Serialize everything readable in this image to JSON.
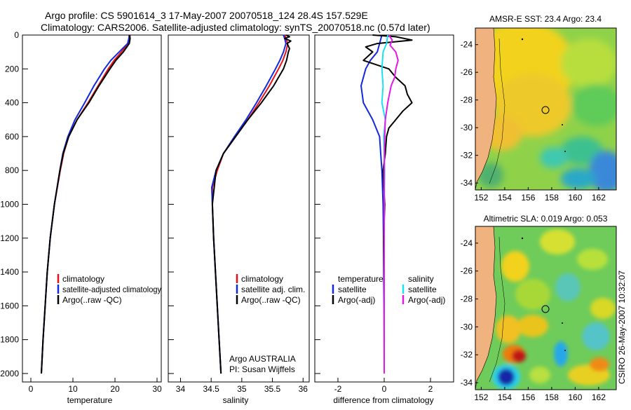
{
  "title": {
    "line1": "Argo profile: CS 5901614_3 17-May-2007 20070518_124 28.4S 157.529E",
    "line2": "Climatology: CARS2006. Satellite-adjusted climatology: synTS_20070518.nc (0.57d later)"
  },
  "colors": {
    "climatology": "#e8101a",
    "satellite": "#1228e0",
    "argo": "#000000",
    "sat_diff": "#19e3f0",
    "argo_sal_diff": "#e419e4",
    "land": "#f0b27f"
  },
  "depth_axis": {
    "ticks": [
      "0",
      "200",
      "400",
      "600",
      "800",
      "1000",
      "1200",
      "1400",
      "1600",
      "1800",
      "2000"
    ]
  },
  "chart_data": [
    {
      "type": "line",
      "xlabel": "temperature",
      "xlim": [
        -2,
        31
      ],
      "ylim": [
        2050,
        0
      ],
      "xticks": [
        "0",
        "10",
        "20",
        "30"
      ],
      "legend": [
        "climatology",
        "satellite-adjusted climatology",
        "Argo(..raw -QC)"
      ],
      "series": [
        {
          "name": "climatology",
          "depth": [
            0,
            20,
            50,
            100,
            150,
            200,
            300,
            400,
            500,
            600,
            700,
            800,
            1000,
            1200,
            1400,
            1600,
            1800,
            2000
          ],
          "values": [
            23.6,
            23.5,
            23.2,
            21.5,
            19.8,
            18.4,
            16.0,
            13.6,
            11.0,
            9.0,
            7.8,
            7.0,
            5.6,
            4.6,
            3.9,
            3.4,
            2.9,
            2.5
          ]
        },
        {
          "name": "satellite-adjusted climatology",
          "depth": [
            0,
            20,
            50,
            100,
            150,
            200,
            300,
            400,
            500,
            600,
            700,
            800,
            1000,
            1200,
            1400,
            1600,
            1800,
            2000
          ],
          "values": [
            23.4,
            23.3,
            23.0,
            21.0,
            19.0,
            17.5,
            15.0,
            12.8,
            10.5,
            8.8,
            7.6,
            6.9,
            5.6,
            4.6,
            3.9,
            3.4,
            2.9,
            2.5
          ]
        },
        {
          "name": "Argo(..raw -QC)",
          "depth": [
            0,
            20,
            50,
            100,
            150,
            200,
            300,
            400,
            500,
            600,
            700,
            800,
            1000,
            1200,
            1400,
            1600,
            1800,
            2000
          ],
          "values": [
            23.4,
            23.6,
            23.4,
            22.0,
            20.2,
            18.8,
            16.2,
            13.8,
            11.0,
            9.0,
            7.7,
            6.9,
            5.6,
            4.6,
            3.9,
            3.4,
            2.9,
            2.5
          ]
        }
      ]
    },
    {
      "type": "line",
      "xlabel": "salinity",
      "xlim": [
        33.8,
        36.1
      ],
      "ylim": [
        2050,
        0
      ],
      "xticks": [
        "34",
        "34.5",
        "35",
        "35.5",
        "36"
      ],
      "legend": [
        "climatology",
        "satellite adj. clim.",
        "Argo(..raw -QC)"
      ],
      "annotation": [
        "Argo AUSTRALIA",
        "PI: Susan Wijffels"
      ],
      "series": [
        {
          "name": "climatology",
          "depth": [
            0,
            20,
            50,
            100,
            150,
            200,
            300,
            400,
            500,
            600,
            700,
            800,
            900,
            1000,
            1200,
            1400,
            1600,
            1800,
            2000
          ],
          "values": [
            35.7,
            35.72,
            35.75,
            35.72,
            35.67,
            35.6,
            35.45,
            35.28,
            35.1,
            34.9,
            34.7,
            34.6,
            34.52,
            34.52,
            34.54,
            34.57,
            34.6,
            34.63,
            34.66
          ]
        },
        {
          "name": "satellite adj. clim.",
          "depth": [
            0,
            20,
            50,
            100,
            150,
            200,
            300,
            400,
            500,
            600,
            700,
            800,
            900,
            1000,
            1200,
            1400,
            1600,
            1800,
            2000
          ],
          "values": [
            35.68,
            35.7,
            35.72,
            35.68,
            35.62,
            35.55,
            35.4,
            35.24,
            35.07,
            34.88,
            34.7,
            34.58,
            34.51,
            34.52,
            34.54,
            34.57,
            34.6,
            34.63,
            34.66
          ]
        },
        {
          "name": "Argo(..raw -QC)",
          "depth": [
            0,
            10,
            20,
            35,
            50,
            80,
            100,
            150,
            200,
            300,
            400,
            500,
            600,
            700,
            800,
            1000,
            1200,
            1400,
            1600,
            1800,
            2000
          ],
          "values": [
            35.72,
            35.78,
            35.7,
            35.8,
            35.74,
            35.78,
            35.76,
            35.73,
            35.68,
            35.52,
            35.32,
            35.1,
            34.9,
            34.7,
            34.58,
            34.52,
            34.54,
            34.57,
            34.6,
            34.63,
            34.66
          ]
        }
      ]
    },
    {
      "type": "line",
      "xlabel": "difference from climatology",
      "xlim": [
        -3,
        3
      ],
      "ylim": [
        2050,
        0
      ],
      "xticks": [
        "-2",
        "0",
        "2"
      ],
      "legend_temperature": {
        "heading": "temperature",
        "items": [
          "satellite",
          "Argo(-adj)"
        ]
      },
      "legend_salinity": {
        "heading": "salinity",
        "items": [
          "satellite",
          "Argo(-adj)"
        ]
      },
      "series": [
        {
          "name": "temperature satellite",
          "depth": [
            0,
            50,
            100,
            150,
            200,
            300,
            400,
            500,
            600,
            700,
            800,
            1000,
            1200,
            1400,
            1600,
            2000
          ],
          "values": [
            -0.1,
            -0.2,
            -0.3,
            -0.6,
            -0.8,
            -1.0,
            -0.9,
            -0.5,
            -0.2,
            -0.15,
            -0.1,
            -0.05,
            -0.03,
            -0.02,
            -0.01,
            0
          ]
        },
        {
          "name": "temperature Argo(-adj)",
          "depth": [
            0,
            10,
            30,
            50,
            70,
            100,
            150,
            200,
            250,
            300,
            350,
            400,
            450,
            500,
            550,
            600,
            700,
            800,
            1000,
            1200,
            1500,
            2000
          ],
          "values": [
            -0.5,
            0.5,
            1.2,
            -0.3,
            -0.8,
            -0.5,
            -0.9,
            0.2,
            0.5,
            0.9,
            1.0,
            1.2,
            0.8,
            0.5,
            0.2,
            0.1,
            0.05,
            -0.05,
            0.02,
            -0.02,
            0,
            0
          ]
        },
        {
          "name": "salinity satellite",
          "depth": [
            0,
            50,
            100,
            200,
            300,
            400,
            500,
            600,
            700,
            800,
            1000,
            1500,
            2000
          ],
          "values": [
            0.15,
            0.1,
            -0.05,
            -0.1,
            -0.05,
            -0.1,
            0.05,
            -0.02,
            0,
            0.02,
            0,
            0,
            0
          ]
        },
        {
          "name": "salinity Argo(-adj)",
          "depth": [
            0,
            30,
            60,
            100,
            150,
            200,
            250,
            300,
            400,
            500,
            600,
            800,
            1000,
            1500,
            2000
          ],
          "values": [
            0.2,
            0.35,
            0.25,
            0.5,
            0.6,
            0.5,
            0.45,
            0.3,
            0.15,
            0.05,
            0.02,
            0,
            0,
            0,
            0
          ]
        }
      ]
    },
    {
      "type": "heatmap",
      "title": "AMSR-E SST: 23.4 Argo: 23.4",
      "xticks": [
        "152",
        "154",
        "156",
        "158",
        "160",
        "162"
      ],
      "yticks": [
        "-24",
        "-26",
        "-28",
        "-30",
        "-32",
        "-34"
      ],
      "xlim": [
        151.5,
        163.5
      ],
      "ylim": [
        -34.5,
        -22.8
      ],
      "float_position": [
        157.529,
        -28.4
      ]
    },
    {
      "type": "heatmap",
      "title": "Altimetric SLA: 0.019 Argo: 0.053",
      "xticks": [
        "152",
        "154",
        "156",
        "158",
        "160",
        "162"
      ],
      "yticks": [
        "-24",
        "-26",
        "-28",
        "-30",
        "-32",
        "-34"
      ],
      "xlim": [
        151.5,
        163.5
      ],
      "ylim": [
        -34.5,
        -22.8
      ],
      "float_position": [
        157.529,
        -28.4
      ]
    }
  ],
  "credit": "CSIRO 26-May-2007 10:32:07"
}
